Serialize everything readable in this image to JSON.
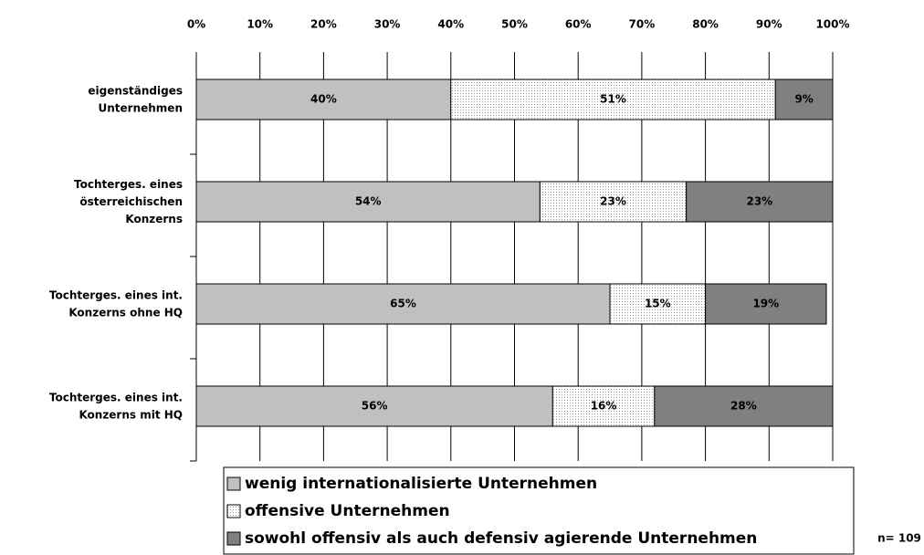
{
  "chart_data": {
    "type": "stacked_barh",
    "categories": [
      "eigenständiges\nUnternehmen",
      "Tochterges. eines\nösterreichischen\nKonzerns",
      "Tochterges. eines int.\nKonzerns ohne HQ",
      "Tochterges. eines int.\nKonzerns mit HQ"
    ],
    "series": [
      {
        "name": "wenig internationalisierte Unternehmen",
        "color": "#c0c0c0",
        "values": [
          40,
          54,
          65,
          56
        ],
        "value_labels": [
          "40%",
          "54%",
          "65%",
          "56%"
        ]
      },
      {
        "name": "offensive Unternehmen",
        "color": "#f2f2f2",
        "pattern": "dots",
        "values": [
          51,
          23,
          15,
          16
        ],
        "value_labels": [
          "51%",
          "23%",
          "15%",
          "16%"
        ]
      },
      {
        "name": "sowohl offensiv als auch defensiv agierende Unternehmen",
        "color": "#808080",
        "values": [
          9,
          23,
          19,
          28
        ],
        "value_labels": [
          "9%",
          "23%",
          "19%",
          "28%"
        ]
      }
    ],
    "xlim": [
      0,
      100
    ],
    "xticks": [
      {
        "value": 0,
        "label": "0%"
      },
      {
        "value": 10,
        "label": "10%"
      },
      {
        "value": 20,
        "label": "20%"
      },
      {
        "value": 30,
        "label": "30%"
      },
      {
        "value": 40,
        "label": "40%"
      },
      {
        "value": 50,
        "label": "50%"
      },
      {
        "value": 60,
        "label": "60%"
      },
      {
        "value": 70,
        "label": "70%"
      },
      {
        "value": 80,
        "label": "80%"
      },
      {
        "value": 90,
        "label": "90%"
      },
      {
        "value": 100,
        "label": "100%"
      }
    ],
    "grid": true,
    "annotation": "n= 109"
  }
}
